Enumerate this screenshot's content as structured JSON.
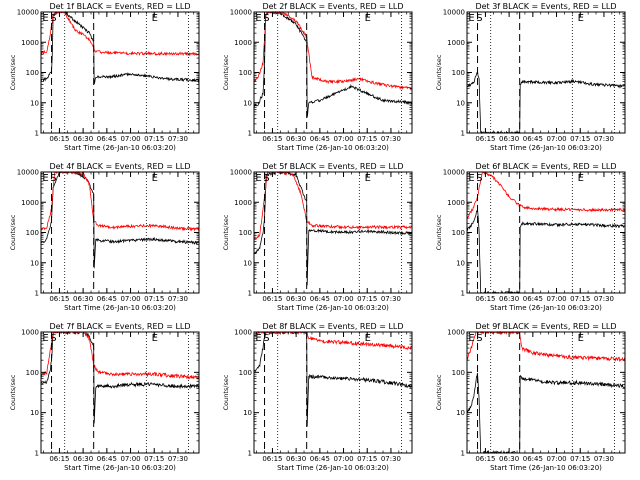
{
  "figure": {
    "y_axis_label": "Counts/sec",
    "x_axis_label": "Start Time (26-Jan-10 06:03:20)",
    "x_ticks": [
      "06:15",
      "06:30",
      "06:45",
      "07:00",
      "07:15",
      "07:30"
    ],
    "y_ticks": [
      "1",
      "10",
      "100",
      "1000",
      "10000"
    ],
    "markers": {
      "e": "E",
      "s": "S"
    },
    "colors": {
      "events": "#000000",
      "lld": "#ff0000",
      "axes": "#000000"
    }
  },
  "chart_data": [
    {
      "type": "line",
      "title": "Det 1f BLACK = Events, RED = LLD",
      "ylim": [
        1,
        10000
      ],
      "y_scale": "log",
      "xlim": [
        "06:03:20",
        "07:43:20"
      ],
      "dashed_lines_at": [
        "06:10:00",
        "06:36:40"
      ],
      "dotted_lines_at": [
        "06:18:20",
        "07:10:00",
        "07:36:40"
      ],
      "marker_labels": [
        {
          "text": "E",
          "at": "06:04:10"
        },
        {
          "text": "S",
          "at": "06:09:10"
        },
        {
          "text": "E",
          "at": "07:13:20"
        }
      ],
      "series": [
        {
          "name": "Events",
          "x": [
            "06:03:20",
            "06:07:00",
            "06:10:00",
            "06:10:30",
            "06:11:00",
            "06:14:00",
            "06:18:00",
            "06:25:00",
            "06:34:00",
            "06:36:40",
            "06:37:00",
            "06:38:00",
            "06:45:00",
            "07:00:00",
            "07:15:00",
            "07:25:00",
            "07:43:20"
          ],
          "values": [
            55,
            60,
            110,
            400,
            8000,
            10000,
            10000,
            5000,
            2000,
            1000,
            40,
            75,
            70,
            90,
            70,
            60,
            55
          ]
        },
        {
          "name": "LLD",
          "x": [
            "06:03:20",
            "06:07:00",
            "06:09:00",
            "06:11:00",
            "06:14:00",
            "06:18:00",
            "06:25:00",
            "06:30:00",
            "06:34:00",
            "06:36:40",
            "06:38:00",
            "06:45:00",
            "07:00:00",
            "07:15:00",
            "07:30:00",
            "07:43:20"
          ],
          "values": [
            430,
            500,
            1500,
            8000,
            10000,
            10000,
            2500,
            1800,
            1200,
            650,
            500,
            450,
            430,
            420,
            420,
            410
          ]
        }
      ]
    },
    {
      "type": "line",
      "title": "Det 2f BLACK = Events, RED = LLD",
      "ylim": [
        1,
        10000
      ],
      "y_scale": "log",
      "xlim": [
        "06:03:20",
        "07:43:20"
      ],
      "dashed_lines_at": [
        "06:10:00",
        "06:36:40"
      ],
      "dotted_lines_at": [
        "06:18:20",
        "07:10:00",
        "07:36:40"
      ],
      "marker_labels": [
        {
          "text": "E",
          "at": "06:04:10"
        },
        {
          "text": "S",
          "at": "06:09:10"
        },
        {
          "text": "E",
          "at": "07:13:20"
        }
      ],
      "series": [
        {
          "name": "Events",
          "x": [
            "06:03:20",
            "06:06:00",
            "06:09:00",
            "06:10:00",
            "06:10:40",
            "06:13:00",
            "06:20:00",
            "06:30:00",
            "06:36:40",
            "06:37:00",
            "06:38:00",
            "06:45:00",
            "06:55:00",
            "07:05:00",
            "07:15:00",
            "07:25:00",
            "07:43:20"
          ],
          "values": [
            8,
            9,
            20,
            200,
            8000,
            10000,
            9000,
            4000,
            1000,
            3,
            10,
            12,
            20,
            35,
            20,
            12,
            10
          ]
        },
        {
          "name": "LLD",
          "x": [
            "06:03:20",
            "06:06:00",
            "06:09:00",
            "06:11:00",
            "06:14:00",
            "06:22:00",
            "06:30:00",
            "06:36:40",
            "06:40:00",
            "06:50:00",
            "07:00:00",
            "07:10:00",
            "07:20:00",
            "07:30:00",
            "07:43:20"
          ],
          "values": [
            50,
            70,
            200,
            9000,
            10000,
            9500,
            5000,
            1500,
            70,
            50,
            50,
            60,
            45,
            35,
            30
          ]
        }
      ]
    },
    {
      "type": "line",
      "title": "Det 3f BLACK = Events, RED = LLD",
      "ylim": [
        1,
        10000
      ],
      "y_scale": "log",
      "xlim": [
        "06:03:20",
        "07:43:20"
      ],
      "dashed_lines_at": [
        "06:10:00",
        "06:36:40"
      ],
      "dotted_lines_at": [
        "06:18:20",
        "07:10:00",
        "07:36:40"
      ],
      "marker_labels": [
        {
          "text": "E",
          "at": "06:04:10"
        },
        {
          "text": "S",
          "at": "06:09:10"
        },
        {
          "text": "E",
          "at": "07:13:20"
        }
      ],
      "series": [
        {
          "name": "Events",
          "x": [
            "06:03:20",
            "06:06:00",
            "06:08:00",
            "06:09:00",
            "06:10:00",
            "06:11:00",
            "06:12:00",
            "06:36:40",
            "06:37:00",
            "06:38:00",
            "06:50:00",
            "07:00:00",
            "07:10:00",
            "07:25:00",
            "07:43:20"
          ],
          "values": [
            35,
            40,
            50,
            80,
            100,
            60,
            1,
            1,
            40,
            50,
            48,
            45,
            50,
            40,
            35
          ]
        }
      ]
    },
    {
      "type": "line",
      "title": "Det 4f BLACK = Events, RED = LLD",
      "ylim": [
        1,
        10000
      ],
      "y_scale": "log",
      "xlim": [
        "06:03:20",
        "07:43:20"
      ],
      "dashed_lines_at": [
        "06:10:00",
        "06:36:40"
      ],
      "dotted_lines_at": [
        "06:18:20",
        "07:10:00",
        "07:36:40"
      ],
      "marker_labels": [
        {
          "text": "E",
          "at": "06:04:10"
        },
        {
          "text": "S",
          "at": "06:09:10"
        },
        {
          "text": "E",
          "at": "07:13:20"
        }
      ],
      "series": [
        {
          "name": "Events",
          "x": [
            "06:03:20",
            "06:07:00",
            "06:10:00",
            "06:11:00",
            "06:15:00",
            "06:25:00",
            "06:32:00",
            "06:36:40",
            "06:37:00",
            "06:38:00",
            "06:50:00",
            "07:00:00",
            "07:15:00",
            "07:30:00",
            "07:43:20"
          ],
          "values": [
            45,
            60,
            250,
            3000,
            10000,
            10000,
            6000,
            2000,
            6,
            55,
            50,
            55,
            60,
            50,
            45
          ]
        },
        {
          "name": "LLD",
          "x": [
            "06:03:20",
            "06:07:00",
            "06:10:00",
            "06:12:00",
            "06:20:00",
            "06:30:00",
            "06:34:00",
            "06:36:40",
            "06:40:00",
            "06:50:00",
            "07:00:00",
            "07:15:00",
            "07:30:00",
            "07:43:20"
          ],
          "values": [
            120,
            150,
            600,
            10000,
            10000,
            9000,
            4000,
            250,
            170,
            150,
            160,
            170,
            140,
            130
          ]
        }
      ]
    },
    {
      "type": "line",
      "title": "Det 5f BLACK = Events, RED = LLD",
      "ylim": [
        1,
        10000
      ],
      "y_scale": "log",
      "xlim": [
        "06:03:20",
        "07:43:20"
      ],
      "dashed_lines_at": [
        "06:10:00",
        "06:36:40"
      ],
      "dotted_lines_at": [
        "06:18:20",
        "07:10:00",
        "07:36:40"
      ],
      "marker_labels": [
        {
          "text": "E",
          "at": "06:04:10"
        },
        {
          "text": "S",
          "at": "06:09:10"
        },
        {
          "text": "E",
          "at": "07:13:20"
        }
      ],
      "series": [
        {
          "name": "Events",
          "x": [
            "06:03:20",
            "06:07:00",
            "06:09:00",
            "06:10:00",
            "06:11:00",
            "06:20:00",
            "06:30:00",
            "06:36:40",
            "06:37:00",
            "06:38:00",
            "06:50:00",
            "07:00:00",
            "07:15:00",
            "07:30:00",
            "07:43:20"
          ],
          "values": [
            20,
            30,
            100,
            300,
            8000,
            10000,
            8000,
            1000,
            2,
            120,
            110,
            100,
            110,
            100,
            95
          ]
        },
        {
          "name": "LLD",
          "x": [
            "06:03:20",
            "06:07:00",
            "06:09:00",
            "06:12:00",
            "06:20:00",
            "06:28:00",
            "06:33:00",
            "06:36:40",
            "06:40:00",
            "06:50:00",
            "07:00:00",
            "07:15:00",
            "07:30:00",
            "07:43:20"
          ],
          "values": [
            60,
            80,
            600,
            10000,
            10000,
            8000,
            2000,
            250,
            170,
            160,
            150,
            150,
            150,
            150
          ]
        }
      ]
    },
    {
      "type": "line",
      "title": "Det 6f BLACK = Events, RED = LLD",
      "ylim": [
        1,
        10000
      ],
      "y_scale": "log",
      "xlim": [
        "06:03:20",
        "07:43:20"
      ],
      "dashed_lines_at": [
        "06:10:00",
        "06:36:40"
      ],
      "dotted_lines_at": [
        "06:18:20",
        "07:10:00",
        "07:36:40"
      ],
      "marker_labels": [
        {
          "text": "E",
          "at": "06:04:10"
        },
        {
          "text": "S",
          "at": "06:09:10"
        },
        {
          "text": "E",
          "at": "07:13:20"
        }
      ],
      "series": [
        {
          "name": "Events",
          "x": [
            "06:03:20",
            "06:07:00",
            "06:09:00",
            "06:10:00",
            "06:11:00",
            "06:12:00",
            "06:36:40",
            "06:37:00",
            "06:38:00",
            "06:50:00",
            "07:00:00",
            "07:15:00",
            "07:30:00",
            "07:43:20"
          ],
          "values": [
            120,
            200,
            400,
            600,
            100,
            1,
            1,
            150,
            200,
            190,
            180,
            190,
            170,
            160
          ]
        },
        {
          "name": "LLD",
          "x": [
            "06:03:20",
            "06:07:00",
            "06:10:00",
            "06:13:00",
            "06:18:00",
            "06:24:00",
            "06:30:00",
            "06:36:40",
            "06:40:00",
            "06:50:00",
            "07:00:00",
            "07:15:00",
            "07:30:00",
            "07:43:20"
          ],
          "values": [
            300,
            600,
            1500,
            10000,
            8000,
            4000,
            1500,
            800,
            650,
            600,
            580,
            560,
            560,
            560
          ]
        }
      ]
    },
    {
      "type": "line",
      "title": "Det 7f BLACK = Events, RED = LLD",
      "ylim": [
        1,
        1000
      ],
      "y_scale": "log",
      "xlim": [
        "06:03:20",
        "07:43:20"
      ],
      "dashed_lines_at": [
        "06:10:00",
        "06:36:40"
      ],
      "dotted_lines_at": [
        "06:18:20",
        "07:10:00",
        "07:36:40"
      ],
      "marker_labels": [
        {
          "text": "E",
          "at": "06:04:10"
        },
        {
          "text": "S",
          "at": "06:09:10"
        },
        {
          "text": "E",
          "at": "07:13:20"
        }
      ],
      "series": [
        {
          "name": "Events",
          "x": [
            "06:03:20",
            "06:07:00",
            "06:09:00",
            "06:10:00",
            "06:11:00",
            "06:20:00",
            "06:30:00",
            "06:34:00",
            "06:36:40",
            "06:37:00",
            "06:38:00",
            "06:50:00",
            "07:00:00",
            "07:15:00",
            "07:30:00",
            "07:43:20"
          ],
          "values": [
            50,
            60,
            100,
            200,
            1000,
            1000,
            1000,
            800,
            400,
            5,
            45,
            45,
            50,
            50,
            45,
            45
          ]
        },
        {
          "name": "LLD",
          "x": [
            "06:03:20",
            "06:07:00",
            "06:09:00",
            "06:11:00",
            "06:20:00",
            "06:30:00",
            "06:34:00",
            "06:36:40",
            "06:40:00",
            "06:50:00",
            "07:00:00",
            "07:15:00",
            "07:30:00",
            "07:43:20"
          ],
          "values": [
            80,
            100,
            300,
            1000,
            1000,
            1000,
            700,
            150,
            100,
            90,
            90,
            90,
            80,
            75
          ]
        }
      ]
    },
    {
      "type": "line",
      "title": "Det 8f BLACK = Events, RED = LLD",
      "ylim": [
        1,
        1000
      ],
      "y_scale": "log",
      "xlim": [
        "06:03:20",
        "07:43:20"
      ],
      "dashed_lines_at": [
        "06:10:00",
        "06:36:40"
      ],
      "dotted_lines_at": [
        "06:18:20",
        "07:10:00",
        "07:36:40"
      ],
      "marker_labels": [
        {
          "text": "E",
          "at": "06:04:10"
        },
        {
          "text": "S",
          "at": "06:09:10"
        },
        {
          "text": "E",
          "at": "07:13:20"
        }
      ],
      "series": [
        {
          "name": "Events",
          "x": [
            "06:03:20",
            "06:07:00",
            "06:09:00",
            "06:10:00",
            "06:11:00",
            "06:20:00",
            "06:30:00",
            "06:36:40",
            "06:37:00",
            "06:38:00",
            "06:50:00",
            "07:00:00",
            "07:15:00",
            "07:30:00",
            "07:43:20"
          ],
          "values": [
            100,
            150,
            400,
            800,
            1000,
            1000,
            1000,
            1000,
            5,
            80,
            75,
            70,
            65,
            55,
            45
          ]
        },
        {
          "name": "LLD",
          "x": [
            "06:03:20",
            "06:07:00",
            "06:10:00",
            "06:20:00",
            "06:30:00",
            "06:36:40",
            "06:38:00",
            "06:45:00",
            "07:00:00",
            "07:15:00",
            "07:30:00",
            "07:43:20"
          ],
          "values": [
            800,
            1000,
            1000,
            1000,
            1000,
            1000,
            700,
            600,
            550,
            500,
            450,
            400
          ]
        }
      ]
    },
    {
      "type": "line",
      "title": "Det 9f BLACK = Events, RED = LLD",
      "ylim": [
        1,
        1000
      ],
      "y_scale": "log",
      "xlim": [
        "06:03:20",
        "07:43:20"
      ],
      "dashed_lines_at": [
        "06:10:00",
        "06:36:40"
      ],
      "dotted_lines_at": [
        "06:18:20",
        "07:10:00",
        "07:36:40"
      ],
      "marker_labels": [
        {
          "text": "E",
          "at": "06:04:10"
        },
        {
          "text": "S",
          "at": "06:09:10"
        },
        {
          "text": "E",
          "at": "07:13:20"
        }
      ],
      "series": [
        {
          "name": "Events",
          "x": [
            "06:03:20",
            "06:06:00",
            "06:08:00",
            "06:09:00",
            "06:10:00",
            "06:11:00",
            "06:12:00",
            "06:36:40",
            "06:37:00",
            "06:38:00",
            "06:50:00",
            "07:00:00",
            "07:15:00",
            "07:30:00",
            "07:43:20"
          ],
          "values": [
            10,
            15,
            30,
            60,
            100,
            20,
            1,
            1,
            80,
            70,
            60,
            55,
            55,
            50,
            45
          ]
        },
        {
          "name": "LLD",
          "x": [
            "06:03:20",
            "06:06:00",
            "06:09:00",
            "06:11:00",
            "06:20:00",
            "06:30:00",
            "06:36:40",
            "06:38:00",
            "06:45:00",
            "07:00:00",
            "07:15:00",
            "07:30:00",
            "07:43:20"
          ],
          "values": [
            200,
            400,
            1000,
            1000,
            1000,
            1000,
            1000,
            400,
            300,
            250,
            230,
            220,
            210
          ]
        }
      ]
    }
  ]
}
